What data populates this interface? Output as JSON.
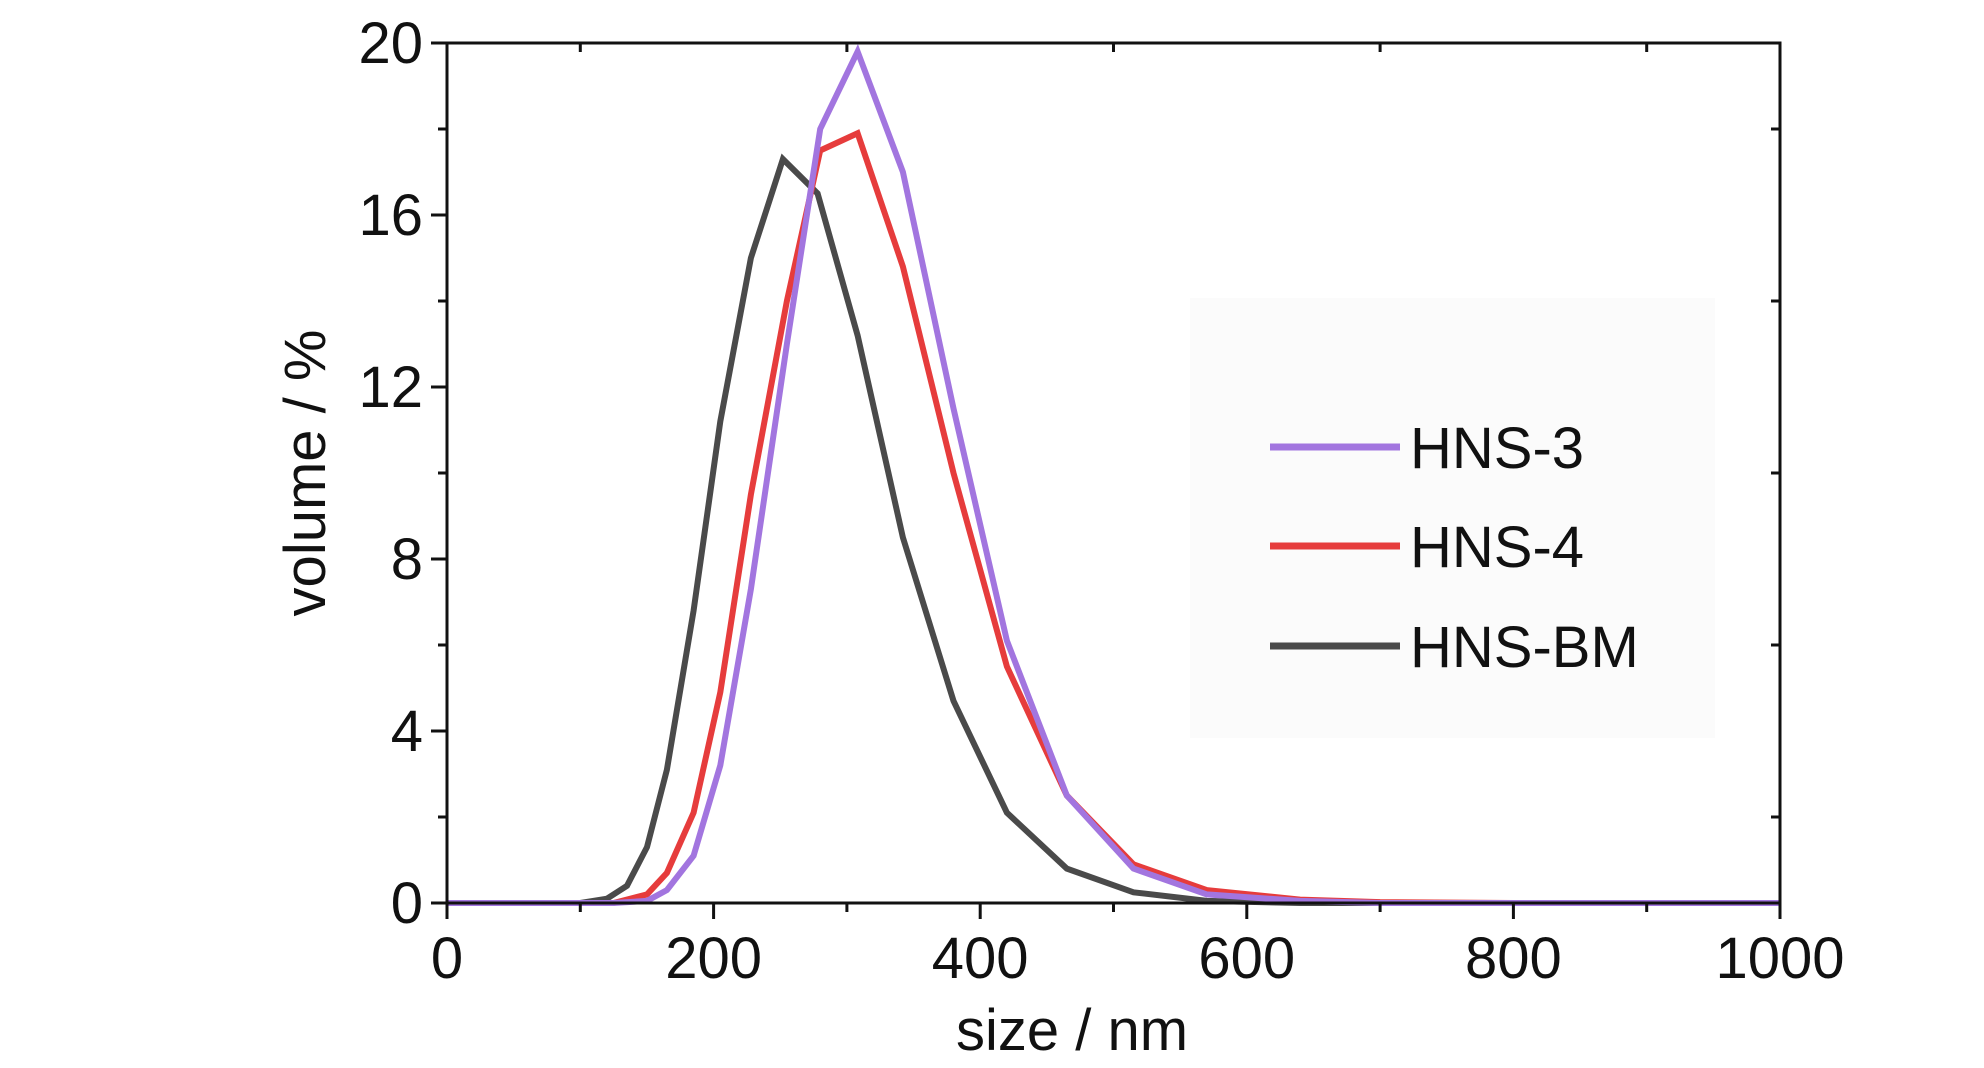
{
  "chart_data": {
    "type": "line",
    "title": "",
    "xlabel": "size / nm",
    "ylabel": "volume / %",
    "xlim": [
      0,
      1000
    ],
    "ylim": [
      0,
      20
    ],
    "x_ticks": [
      "0",
      "200",
      "400",
      "600",
      "800",
      "1000"
    ],
    "y_ticks": [
      "0",
      "4",
      "8",
      "12",
      "16",
      "20"
    ],
    "x_tick_values": [
      0,
      200,
      400,
      600,
      800,
      1000
    ],
    "y_tick_values": [
      0,
      4,
      8,
      12,
      16,
      20
    ],
    "x_minor_step": 100,
    "y_minor_step": 2,
    "grid": false,
    "legend_position": "right",
    "series": [
      {
        "name": "HNS-3",
        "color": "#a275df",
        "x": [
          0,
          100,
          125,
          150,
          165,
          185,
          205,
          228,
          255,
          280,
          308,
          342,
          380,
          420,
          465,
          515,
          570,
          640,
          700,
          800,
          1000
        ],
        "y": [
          0,
          0,
          0,
          0.05,
          0.3,
          1.1,
          3.2,
          7.3,
          13.0,
          18.0,
          19.8,
          17.0,
          11.5,
          6.1,
          2.5,
          0.8,
          0.2,
          0.05,
          0,
          0,
          0
        ]
      },
      {
        "name": "HNS-4",
        "color": "#e63c3c",
        "x": [
          0,
          100,
          125,
          150,
          165,
          185,
          205,
          228,
          255,
          280,
          308,
          342,
          380,
          420,
          465,
          515,
          570,
          640,
          700,
          800,
          1000
        ],
        "y": [
          0,
          0,
          0,
          0.2,
          0.7,
          2.1,
          4.9,
          9.5,
          14.0,
          17.5,
          17.9,
          14.8,
          10.0,
          5.5,
          2.5,
          0.9,
          0.3,
          0.08,
          0.02,
          0,
          0
        ]
      },
      {
        "name": "HNS-BM",
        "color": "#4a4a4a",
        "x": [
          0,
          100,
          120,
          135,
          150,
          165,
          185,
          205,
          228,
          252,
          278,
          308,
          342,
          380,
          420,
          465,
          515,
          570,
          640,
          700,
          1000
        ],
        "y": [
          0,
          0,
          0.1,
          0.4,
          1.3,
          3.1,
          6.8,
          11.2,
          15.0,
          17.3,
          16.5,
          13.2,
          8.5,
          4.7,
          2.1,
          0.8,
          0.25,
          0.05,
          0,
          0,
          0
        ]
      }
    ]
  }
}
